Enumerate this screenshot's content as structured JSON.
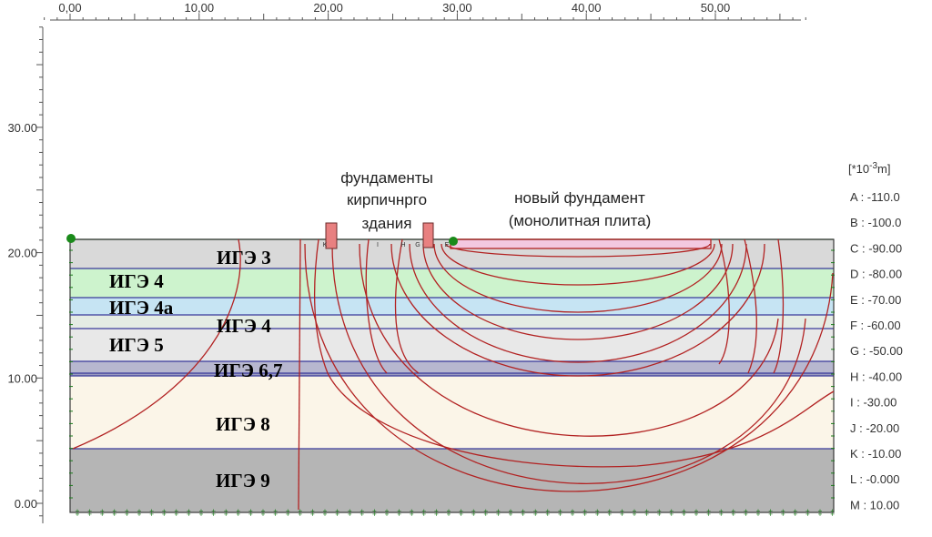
{
  "x_axis": {
    "ticks": [
      "0,00",
      "10,00",
      "20,00",
      "30,00",
      "40,00",
      "50,00"
    ]
  },
  "y_axis": {
    "ticks": [
      "30.00",
      "20.00",
      "10.00",
      "0.00"
    ]
  },
  "annotations": {
    "old_foundations": [
      "фундаменты",
      "кирпичнрго",
      "здания"
    ],
    "new_foundation": [
      "новый фундамент",
      "(монолитная плита)"
    ]
  },
  "contour_labels": [
    "K",
    "I",
    "H",
    "G",
    "E"
  ],
  "layers": [
    "ИГЭ 3",
    "ИГЭ 4",
    "ИГЭ 4а",
    "ИГЭ 4",
    "ИГЭ 5",
    "ИГЭ 6,7",
    "ИГЭ 8",
    "ИГЭ 9"
  ],
  "legend": {
    "unit": {
      "prefix": "[*10",
      "exponent": "-3",
      "suffix": "m]"
    },
    "items": [
      "A : -110.0",
      "B : -100.0",
      "C : -90.00",
      "D : -80.00",
      "E : -70.00",
      "F : -60.00",
      "G : -50.00",
      "H : -40.00",
      "I : -30.00",
      "J : -20.00",
      "K : -10.00",
      "L : -0.000",
      "M : 10.00"
    ]
  }
}
